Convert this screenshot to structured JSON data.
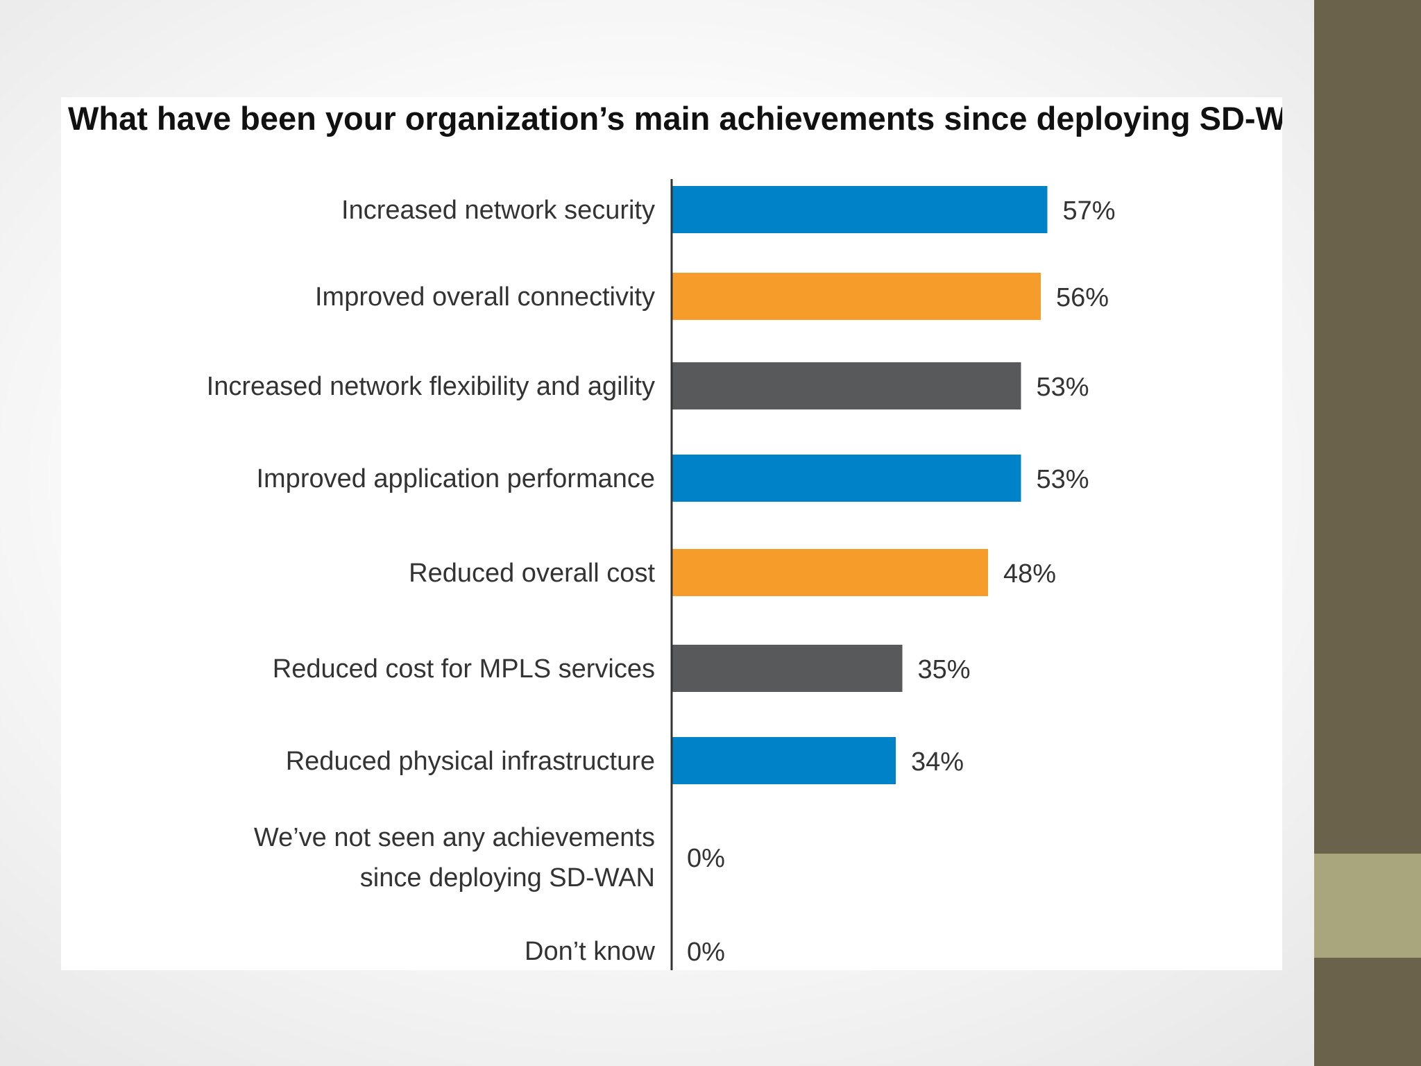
{
  "chart_data": {
    "type": "bar",
    "orientation": "horizontal",
    "title": "What have been your organization’s main achievements since deploying SD-WAN?",
    "categories": [
      [
        "Increased network security"
      ],
      [
        "Improved overall connectivity"
      ],
      [
        "Increased network flexibility and agility"
      ],
      [
        "Improved application performance"
      ],
      [
        "Reduced overall cost"
      ],
      [
        "Reduced cost for MPLS services"
      ],
      [
        "Reduced physical infrastructure"
      ],
      [
        "We’ve not seen any achievements",
        "since deploying SD-WAN"
      ],
      [
        "Don’t know"
      ]
    ],
    "values": [
      57,
      56,
      53,
      53,
      48,
      35,
      34,
      0,
      0
    ],
    "value_labels": [
      "57%",
      "56%",
      "53%",
      "53%",
      "48%",
      "35%",
      "34%",
      "0%",
      "0%"
    ],
    "bar_colors": [
      "#0082c8",
      "#f59c2a",
      "#58595b",
      "#0082c8",
      "#f59c2a",
      "#58595b",
      "#0082c8",
      "#0082c8",
      "#0082c8"
    ],
    "xlim": [
      0,
      100
    ],
    "grid": false,
    "legend": "none"
  },
  "colors": {
    "side_bar": "#6a624a",
    "side_accent": "#a9a57c",
    "axis_line": "#333333"
  }
}
